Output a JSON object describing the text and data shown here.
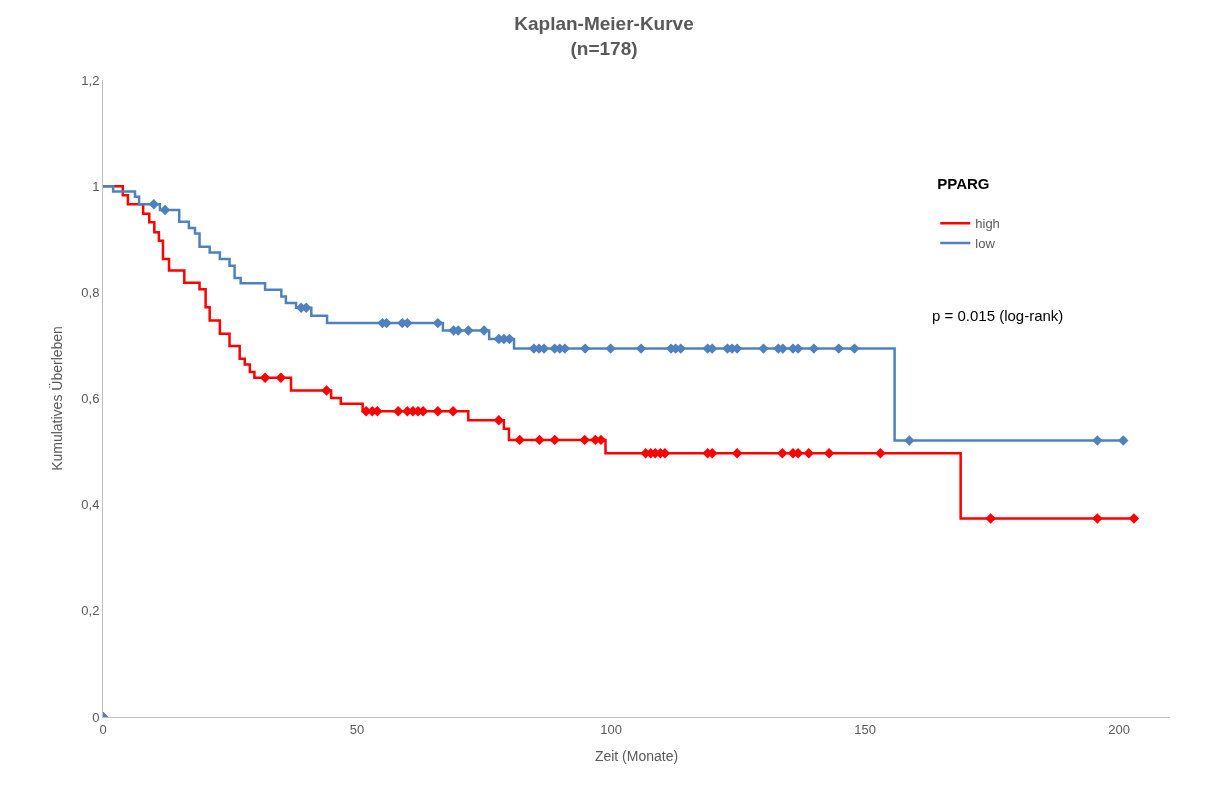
{
  "chart_data": {
    "type": "step",
    "title": "Kaplan-Meier-Kurve\n(n=178)",
    "xlabel": "Zeit (Monate)",
    "ylabel": "Kumulatives Überleben",
    "legend_title": "PPARG",
    "legend": "top right",
    "grid": false,
    "xlim": [
      0,
      210
    ],
    "xticks": [
      0,
      50,
      100,
      150,
      200
    ],
    "ylim": [
      0,
      1.2
    ],
    "yticks": [
      0,
      {
        "value": 0.2,
        "label": "0,2"
      },
      {
        "value": 0.4,
        "label": "0,4"
      },
      {
        "value": 0.6,
        "label": "0,6"
      },
      {
        "value": 0.8,
        "label": "0,8"
      },
      1,
      {
        "value": 1.2,
        "label": "1,2"
      }
    ],
    "annotations": [
      "p = 0.015 (log-rank)"
    ],
    "series": [
      {
        "name": "high",
        "color": "#ff0000",
        "marker": "none",
        "x": [
          0,
          3.9,
          4.9,
          7.9,
          9.1,
          10.1,
          11.0,
          11.8,
          13.0,
          16.0,
          19.0,
          20.2,
          21.0,
          23.0,
          24.9,
          26.9,
          27.9,
          28.9,
          29.8,
          37.0,
          44.9,
          46.8,
          51.1,
          71.9,
          78.9,
          79.9,
          98.9,
          168.8,
          202.9
        ],
        "values": [
          1,
          0.983,
          0.966,
          0.948,
          0.932,
          0.913,
          0.897,
          0.863,
          0.841,
          0.818,
          0.806,
          0.772,
          0.747,
          0.722,
          0.699,
          0.675,
          0.664,
          0.65,
          0.639,
          0.615,
          0.601,
          0.59,
          0.576,
          0.559,
          0.543,
          0.522,
          0.497,
          0.374,
          0.374
        ]
      },
      {
        "name": "low",
        "color": "#4f81bd",
        "marker": "none",
        "x": [
          0,
          2.0,
          6.3,
          7.1,
          11.2,
          15.0,
          16.9,
          18.1,
          19.0,
          21.0,
          23.0,
          24.9,
          25.9,
          27.1,
          31.9,
          35.1,
          36.0,
          38.0,
          41.0,
          44.1,
          66.9,
          76.0,
          80.9,
          155.8,
          200.8
        ],
        "values": [
          1,
          0.99,
          0.98,
          0.966,
          0.955,
          0.933,
          0.921,
          0.911,
          0.886,
          0.875,
          0.863,
          0.85,
          0.827,
          0.817,
          0.805,
          0.792,
          0.78,
          0.771,
          0.756,
          0.742,
          0.728,
          0.712,
          0.694,
          0.521,
          0.521
        ]
      },
      {
        "type": "scatter",
        "color": "#ff0000",
        "marker": "diamond",
        "x": [
          0,
          31.9,
          35.0,
          44.0,
          51.8,
          53.0,
          54.0,
          58.1,
          59.9,
          61.0,
          62.0,
          63.0,
          65.9,
          68.9,
          77.9,
          82.0,
          85.9,
          88.9,
          94.8,
          96.9,
          98.0,
          106.8,
          107.8,
          108.7,
          109.7,
          110.6,
          119.0,
          119.9,
          124.8,
          133.7,
          135.8,
          136.8,
          138.9,
          142.9,
          153.0,
          174.7,
          195.7,
          202.9
        ],
        "values": [
          0,
          0.639,
          0.639,
          0.615,
          0.576,
          0.576,
          0.576,
          0.576,
          0.576,
          0.576,
          0.576,
          0.576,
          0.576,
          0.576,
          0.559,
          0.522,
          0.522,
          0.522,
          0.522,
          0.522,
          0.522,
          0.497,
          0.497,
          0.497,
          0.497,
          0.497,
          0.497,
          0.497,
          0.497,
          0.497,
          0.497,
          0.497,
          0.497,
          0.497,
          0.497,
          0.374,
          0.374,
          0.374
        ]
      },
      {
        "type": "scatter",
        "color": "#4f81bd",
        "marker": "diamond",
        "x": [
          0,
          10.0,
          12.2,
          39.0,
          40.0,
          55.0,
          55.8,
          58.9,
          59.9,
          65.9,
          69.0,
          69.9,
          71.9,
          75.0,
          77.9,
          78.9,
          80.0,
          84.8,
          85.8,
          86.8,
          88.9,
          89.9,
          90.9,
          94.9,
          99.9,
          105.9,
          111.8,
          112.7,
          113.7,
          119.0,
          119.9,
          122.9,
          123.8,
          124.8,
          130.0,
          132.9,
          133.8,
          135.8,
          136.8,
          139.9,
          144.8,
          147.9,
          158.7,
          195.7,
          200.8
        ],
        "values": [
          0,
          0.966,
          0.955,
          0.771,
          0.771,
          0.742,
          0.742,
          0.742,
          0.742,
          0.742,
          0.728,
          0.728,
          0.728,
          0.728,
          0.712,
          0.712,
          0.712,
          0.694,
          0.694,
          0.694,
          0.694,
          0.694,
          0.694,
          0.694,
          0.694,
          0.694,
          0.694,
          0.694,
          0.694,
          0.694,
          0.694,
          0.694,
          0.694,
          0.694,
          0.694,
          0.694,
          0.694,
          0.694,
          0.694,
          0.694,
          0.694,
          0.694,
          0.521,
          0.521,
          0.521
        ]
      }
    ]
  }
}
